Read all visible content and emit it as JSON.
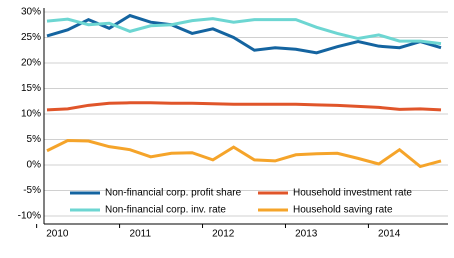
{
  "chart_data": {
    "type": "line",
    "categories": [
      "2010",
      null,
      null,
      null,
      "2011",
      null,
      null,
      null,
      "2012",
      null,
      null,
      null,
      "2013",
      null,
      null,
      null,
      "2014",
      null,
      null,
      null
    ],
    "ylim": [
      -10,
      30
    ],
    "yticks": [
      {
        "value": -10,
        "label": "-10%"
      },
      {
        "value": -5,
        "label": "-5%"
      },
      {
        "value": 0,
        "label": "0%"
      },
      {
        "value": 5,
        "label": "5%"
      },
      {
        "value": 10,
        "label": "10%"
      },
      {
        "value": 15,
        "label": "15%"
      },
      {
        "value": 20,
        "label": "20%"
      },
      {
        "value": 25,
        "label": "25%"
      },
      {
        "value": 30,
        "label": "30%"
      }
    ],
    "grid": true,
    "series": [
      {
        "name": "Non-financial corp. profit share",
        "color": "#1464a0",
        "values": [
          25.3,
          26.5,
          28.5,
          26.8,
          29.3,
          28.0,
          27.5,
          25.8,
          26.7,
          25.0,
          22.5,
          23.0,
          22.7,
          22.0,
          23.2,
          24.2,
          23.3,
          23.0,
          24.2,
          23.0
        ]
      },
      {
        "name": "Household investment rate",
        "color": "#e0552a",
        "values": [
          10.8,
          11.0,
          11.7,
          12.1,
          12.2,
          12.2,
          12.1,
          12.1,
          12.0,
          11.9,
          11.9,
          11.9,
          11.9,
          11.8,
          11.7,
          11.5,
          11.3,
          10.9,
          11.0,
          10.8
        ]
      },
      {
        "name": "Non-financial corp. inv. rate",
        "color": "#6dd6d2",
        "values": [
          28.2,
          28.6,
          27.5,
          27.8,
          26.2,
          27.3,
          27.5,
          28.3,
          28.7,
          28.0,
          28.5,
          28.5,
          28.5,
          27.0,
          25.8,
          24.8,
          25.5,
          24.3,
          24.3,
          23.8
        ]
      },
      {
        "name": "Household saving rate",
        "color": "#f5a42a",
        "values": [
          2.8,
          4.8,
          4.7,
          3.6,
          3.0,
          1.6,
          2.3,
          2.4,
          1.0,
          3.5,
          1.0,
          0.8,
          2.0,
          2.2,
          2.3,
          1.3,
          0.2,
          3.0,
          -0.3,
          0.8
        ]
      }
    ]
  }
}
